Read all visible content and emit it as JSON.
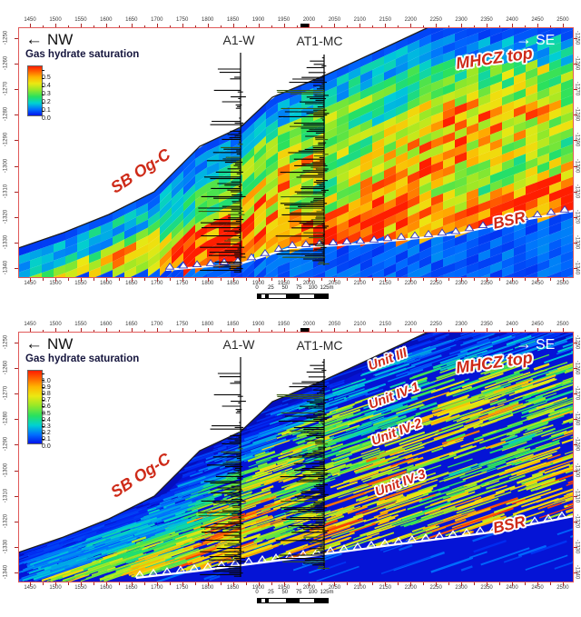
{
  "panels": [
    {
      "name": "upper-section",
      "nw_arrow": "←",
      "nw_label": "NW",
      "se_arrow": "→",
      "se_label": "SE",
      "well_a": "A1-W",
      "well_b": "AT1-MC",
      "legend_title": "Gas hydrate saturation",
      "legend_ticks": [
        "0.5",
        "0.4",
        "0.3",
        "0.2",
        "0.1",
        "0.0"
      ],
      "ann_mhcz": "MHCZ top",
      "ann_sb": "SB Og-C",
      "ann_bsr": "BSR",
      "unit_labels": []
    },
    {
      "name": "lower-section",
      "nw_arrow": "←",
      "nw_label": "NW",
      "se_arrow": "→",
      "se_label": "SE",
      "well_a": "A1-W",
      "well_b": "AT1-MC",
      "legend_title": "Gas hydrate saturation",
      "legend_ticks": [
        "1.0",
        "0.9",
        "0.8",
        "0.7",
        "0.6",
        "0.5",
        "0.4",
        "0.3",
        "0.2",
        "0.1",
        "0.0"
      ],
      "ann_mhcz": "MHCZ top",
      "ann_sb": "SB Og-C",
      "ann_bsr": "BSR",
      "unit_labels": [
        "Unit III",
        "Unit IV-1",
        "Unit IV-2",
        "Unit IV-3"
      ]
    }
  ],
  "axes": {
    "x_ticks": [
      "1450",
      "1500",
      "1550",
      "1600",
      "1650",
      "1700",
      "1750",
      "1800",
      "1850",
      "1900",
      "1950",
      "2000",
      "2050",
      "2100",
      "2150",
      "2200",
      "2250",
      "2300",
      "2350",
      "2400",
      "2450",
      "2500"
    ],
    "depth_ticks": [
      "-1250",
      "-1260",
      "-1270",
      "-1280",
      "-1290",
      "-1300",
      "-1310",
      "-1320",
      "-1330",
      "-1340"
    ]
  },
  "scalebar": {
    "labels": [
      "0",
      "25",
      "50",
      "75",
      "100",
      "125m"
    ]
  },
  "chart_data": [
    {
      "type": "heatmap",
      "panel": "upper",
      "title": "Gas hydrate saturation",
      "orientation_labels": {
        "left": "NW",
        "right": "SE"
      },
      "x_ticks": [
        1450,
        1500,
        1550,
        1600,
        1650,
        1700,
        1750,
        1800,
        1850,
        1900,
        1950,
        2000,
        2050,
        2100,
        2150,
        2200,
        2250,
        2300,
        2350,
        2400,
        2450,
        2500
      ],
      "depth_ticks": [
        -1250,
        -1260,
        -1270,
        -1280,
        -1290,
        -1300,
        -1310,
        -1320,
        -1330,
        -1340
      ],
      "colorbar": {
        "title": "Gas hydrate saturation",
        "min": 0.0,
        "max": 0.5,
        "ticks": [
          0.5,
          0.4,
          0.3,
          0.2,
          0.1,
          0.0
        ],
        "colormap": "jet (blue-cyan-green-yellow-orange-red)"
      },
      "wells": [
        "A1-W",
        "AT1-MC"
      ],
      "annotations": [
        "MHCZ top",
        "SB Og-C",
        "BSR"
      ],
      "scale_bar_m": [
        0,
        25,
        50,
        75,
        100,
        125
      ],
      "pattern": "NW-SE dipping seafloor wedge; saturation ~0 (blue) near seafloor/MHCZ top, increasing with depth to ~0.3-0.5 (green-yellow-orange) just above the BSR; ~0 (blue) below the BSR; black well-log curves at A1-W and AT1-MC"
    },
    {
      "type": "heatmap",
      "panel": "lower",
      "title": "Gas hydrate saturation",
      "orientation_labels": {
        "left": "NW",
        "right": "SE"
      },
      "x_ticks": [
        1450,
        1500,
        1550,
        1600,
        1650,
        1700,
        1750,
        1800,
        1850,
        1900,
        1950,
        2000,
        2050,
        2100,
        2150,
        2200,
        2250,
        2300,
        2350,
        2400,
        2450,
        2500
      ],
      "depth_ticks": [
        -1250,
        -1260,
        -1270,
        -1280,
        -1290,
        -1300,
        -1310,
        -1320,
        -1330,
        -1340
      ],
      "colorbar": {
        "title": "Gas hydrate saturation",
        "min": 0.0,
        "max": 1.0,
        "ticks": [
          1.0,
          0.9,
          0.8,
          0.7,
          0.6,
          0.5,
          0.4,
          0.3,
          0.2,
          0.1,
          0.0
        ],
        "colormap": "jet (blue-cyan-green-yellow-orange-red)"
      },
      "wells": [
        "A1-W",
        "AT1-MC"
      ],
      "annotations": [
        "MHCZ top",
        "Unit III",
        "Unit IV-1",
        "Unit IV-2",
        "Unit IV-3",
        "SB Og-C",
        "BSR"
      ],
      "scale_bar_m": [
        0,
        25,
        50,
        75,
        100,
        125
      ],
      "pattern": "same section with thin streaky high-resolution layers; dark-blue band along seafloor, alternating cyan-green-yellow streaks within Units III to IV-3 above the BSR, blue below the BSR"
    }
  ]
}
